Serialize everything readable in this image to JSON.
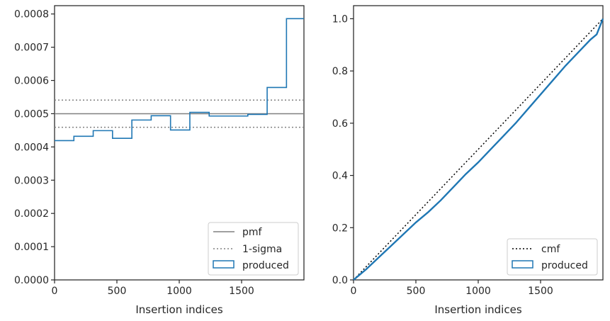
{
  "chart_data": [
    {
      "type": "line",
      "xlabel": "Insertion indices",
      "ylabel": "",
      "xlim": [
        0,
        2000
      ],
      "ylim": [
        0,
        0.000825
      ],
      "xticks": [
        0,
        500,
        1000,
        1500
      ],
      "xtick_labels": [
        "0",
        "500",
        "1000",
        "1500"
      ],
      "yticks": [
        0,
        0.0001,
        0.0002,
        0.0003,
        0.0004,
        0.0005,
        0.0006,
        0.0007,
        0.0008
      ],
      "ytick_labels": [
        "0.0000",
        "0.0001",
        "0.0002",
        "0.0003",
        "0.0004",
        "0.0005",
        "0.0006",
        "0.0007",
        "0.0008"
      ],
      "pmf": 0.0005,
      "sigma_band": [
        0.000459,
        0.000541
      ],
      "produced_hist": {
        "bin_edges": [
          0,
          155,
          310,
          465,
          620,
          775,
          930,
          1085,
          1240,
          1395,
          1550,
          1705,
          1860,
          2000
        ],
        "values": [
          0.000419,
          0.000432,
          0.000449,
          0.000426,
          0.000481,
          0.000494,
          0.000451,
          0.000504,
          0.000493,
          0.000493,
          0.000498,
          0.000579,
          0.000786
        ]
      },
      "legend": {
        "position": "lower right",
        "entries": [
          {
            "label": "pmf",
            "style": "solid",
            "color": "#808080"
          },
          {
            "label": "1-sigma",
            "style": "dotted",
            "color": "#808080"
          },
          {
            "label": "produced",
            "style": "box",
            "color": "#1f77b4"
          }
        ]
      }
    },
    {
      "type": "line",
      "xlabel": "Insertion indices",
      "ylabel": "",
      "xlim": [
        0,
        2000
      ],
      "ylim": [
        0,
        1.05
      ],
      "xticks": [
        0,
        500,
        1000,
        1500
      ],
      "xtick_labels": [
        "0",
        "500",
        "1000",
        "1500"
      ],
      "yticks": [
        0,
        0.2,
        0.4,
        0.6,
        0.8,
        1.0
      ],
      "ytick_labels": [
        "0.0",
        "0.2",
        "0.4",
        "0.6",
        "0.8",
        "1.0"
      ],
      "cmf": {
        "x": [
          0,
          2000
        ],
        "y": [
          0,
          1.0
        ]
      },
      "produced_cdf": {
        "x": [
          0,
          100,
          200,
          300,
          400,
          500,
          600,
          700,
          800,
          900,
          1000,
          1100,
          1200,
          1300,
          1400,
          1500,
          1600,
          1700,
          1800,
          1900,
          1950,
          2000
        ],
        "y": [
          0,
          0.04,
          0.085,
          0.13,
          0.175,
          0.22,
          0.26,
          0.305,
          0.355,
          0.405,
          0.45,
          0.5,
          0.55,
          0.6,
          0.655,
          0.71,
          0.765,
          0.82,
          0.87,
          0.92,
          0.94,
          1.0
        ]
      },
      "legend": {
        "position": "lower right",
        "entries": [
          {
            "label": "cmf",
            "style": "dotted",
            "color": "#000000"
          },
          {
            "label": "produced",
            "style": "box",
            "color": "#1f77b4"
          }
        ]
      }
    }
  ]
}
